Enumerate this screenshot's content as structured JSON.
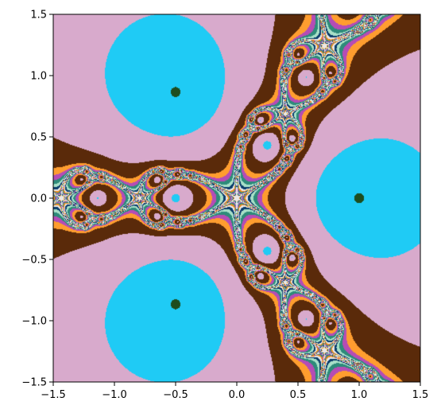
{
  "chart_data": {
    "type": "heatmap",
    "description_kind": "newton-fractal",
    "roots": [
      {
        "re": 1.0,
        "im": 0.0
      },
      {
        "re": -0.5,
        "im": 0.866
      },
      {
        "re": -0.5,
        "im": -0.866
      }
    ],
    "xlim": [
      -1.5,
      1.5
    ],
    "ylim": [
      -1.5,
      1.5
    ],
    "x_ticks": [
      "−1.5",
      "−1.0",
      "−0.5",
      "0.0",
      "0.5",
      "1.0",
      "1.5"
    ],
    "y_ticks": [
      "1.5",
      "1.0",
      "0.5",
      "0.0",
      "−0.5",
      "−1.0",
      "−1.5"
    ],
    "x_tick_values": [
      -1.5,
      -1.0,
      -0.5,
      0.0,
      0.5,
      1.0,
      1.5
    ],
    "y_tick_values": [
      1.5,
      1.0,
      0.5,
      0.0,
      -0.5,
      -1.0,
      -1.5
    ],
    "grid": false,
    "colors": {
      "root_core": "#1e4d1e",
      "band_1": "#1fcbf5",
      "band_2": "#d8aacc",
      "band_3": "#5a2a0a",
      "band_4": "#ff9d2f",
      "band_5": "#b54cb5",
      "band_6": "#2e8b7a",
      "band_7": "#a8e0c8",
      "band_8": "#0a3d6b",
      "band_9": "#e8e8e8",
      "band_10": "#f08a20"
    }
  }
}
